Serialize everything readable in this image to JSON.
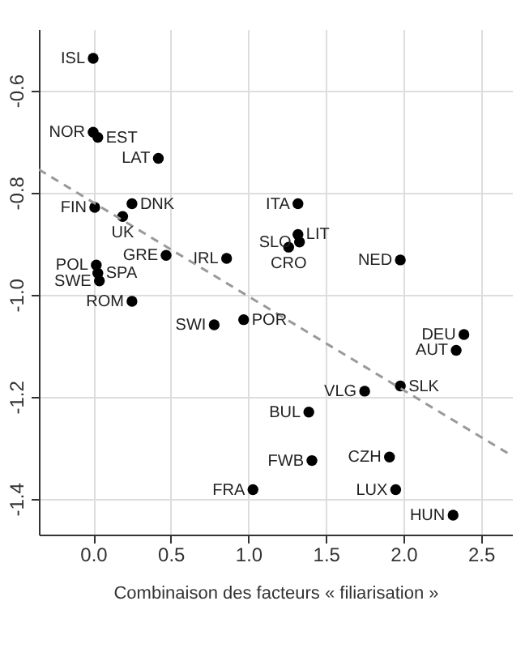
{
  "chart_data": {
    "type": "scatter",
    "xlabel": "Combinaison des facteurs « filiarisation »",
    "xlim": [
      -0.35,
      2.7
    ],
    "ylim": [
      -1.47,
      -0.48
    ],
    "xticks": [
      {
        "value": 0,
        "label": "0.0"
      },
      0.5,
      {
        "value": 1,
        "label": "1.0"
      },
      1.5,
      {
        "value": 2,
        "label": "2.0"
      },
      2.5
    ],
    "yticks": [
      {
        "value": -0.6,
        "label": "-0.6"
      },
      {
        "value": -0.8,
        "label": "-0.8"
      },
      {
        "value": -1,
        "label": "-1.0"
      },
      {
        "value": -1.2,
        "label": "-1.2"
      },
      {
        "value": -1.4,
        "label": "-1.4"
      }
    ],
    "grid": true,
    "marker": "circle",
    "series": [
      {
        "color": "#000000",
        "x": [
          0.0,
          0.0,
          0.03,
          0.42,
          0.25,
          0.01,
          0.19,
          0.47,
          0.86,
          0.02,
          0.03,
          0.04,
          0.25,
          0.97,
          0.78,
          1.03,
          1.32,
          1.32,
          1.33,
          1.26,
          1.98,
          2.39,
          2.34,
          1.98,
          1.75,
          1.39,
          1.41,
          1.91,
          1.95,
          2.32
        ],
        "values": [
          -0.537,
          -0.682,
          -0.692,
          -0.733,
          -0.822,
          -0.829,
          -0.847,
          -0.923,
          -0.929,
          -0.942,
          -0.958,
          -0.973,
          -1.013,
          -1.049,
          -1.059,
          -1.382,
          -0.822,
          -0.882,
          -0.897,
          -0.907,
          -0.932,
          -1.078,
          -1.109,
          -1.179,
          -1.189,
          -1.23,
          -1.325,
          -1.318,
          -1.382,
          -1.432
        ]
      },
      {
        "type": "line",
        "color": "#999999",
        "line_style": "dashed",
        "marker": "none",
        "x": [
          -0.35,
          2.68
        ],
        "values": [
          -0.755,
          -1.312
        ]
      }
    ],
    "annotations": [
      {
        "text": "ISL",
        "x": 0.0,
        "y": -0.537
      },
      {
        "text": "NOR",
        "x": 0.0,
        "y": -0.682
      },
      {
        "text": "EST",
        "x": 0.03,
        "y": -0.692
      },
      {
        "text": "LAT",
        "x": 0.42,
        "y": -0.733
      },
      {
        "text": "DNK",
        "x": 0.25,
        "y": -0.822
      },
      {
        "text": "FIN",
        "x": 0.01,
        "y": -0.829
      },
      {
        "text": "UK",
        "x": 0.19,
        "y": -0.847
      },
      {
        "text": "GRE",
        "x": 0.47,
        "y": -0.923
      },
      {
        "text": "IRL",
        "x": 0.86,
        "y": -0.929
      },
      {
        "text": "POL",
        "x": 0.02,
        "y": -0.942
      },
      {
        "text": "SPA",
        "x": 0.03,
        "y": -0.958
      },
      {
        "text": "SWE",
        "x": 0.04,
        "y": -0.973
      },
      {
        "text": "ROM",
        "x": 0.25,
        "y": -1.013
      },
      {
        "text": "POR",
        "x": 0.97,
        "y": -1.049
      },
      {
        "text": "SWI",
        "x": 0.78,
        "y": -1.059
      },
      {
        "text": "FRA",
        "x": 1.03,
        "y": -1.382
      },
      {
        "text": "ITA",
        "x": 1.32,
        "y": -0.822
      },
      {
        "text": "LIT",
        "x": 1.32,
        "y": -0.882
      },
      {
        "text": "SLO",
        "x": 1.33,
        "y": -0.897
      },
      {
        "text": "CRO",
        "x": 1.26,
        "y": -0.907
      },
      {
        "text": "NED",
        "x": 1.98,
        "y": -0.932
      },
      {
        "text": "DEU",
        "x": 2.39,
        "y": -1.078
      },
      {
        "text": "AUT",
        "x": 2.34,
        "y": -1.109
      },
      {
        "text": "SLK",
        "x": 1.98,
        "y": -1.179
      },
      {
        "text": "VLG",
        "x": 1.75,
        "y": -1.189
      },
      {
        "text": "BUL",
        "x": 1.39,
        "y": -1.23
      },
      {
        "text": "FWB",
        "x": 1.41,
        "y": -1.325
      },
      {
        "text": "CZH",
        "x": 1.91,
        "y": -1.318
      },
      {
        "text": "LUX",
        "x": 1.95,
        "y": -1.382
      },
      {
        "text": "HUN",
        "x": 2.32,
        "y": -1.432
      }
    ]
  }
}
